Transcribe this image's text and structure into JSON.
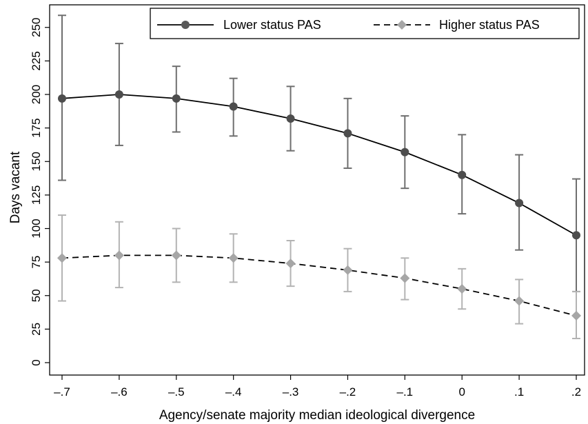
{
  "chart_data": {
    "type": "line",
    "title": "",
    "xlabel": "Agency/senate majority median ideological divergence",
    "ylabel": "Days vacant",
    "x": [
      -0.7,
      -0.6,
      -0.5,
      -0.4,
      -0.3,
      -0.2,
      -0.1,
      0,
      0.1,
      0.2
    ],
    "x_tick_labels": [
      "–.7",
      "–.6",
      "–.5",
      "–.4",
      "–.3",
      "–.2",
      "–.1",
      "0",
      ".1",
      ".2"
    ],
    "y_ticks": [
      0,
      25,
      50,
      75,
      100,
      125,
      150,
      175,
      200,
      225,
      250
    ],
    "xlim": [
      -0.7,
      0.2
    ],
    "ylim": [
      0,
      260
    ],
    "grid": false,
    "legend_position": "top-right",
    "series": [
      {
        "name": "Lower status PAS",
        "line_style": "solid",
        "marker": "circle",
        "color": "#4d4d4d",
        "errorbar_color": "#6e6e6e",
        "values": [
          197,
          200,
          197,
          191,
          182,
          171,
          157,
          140,
          119,
          95
        ],
        "ci_low": [
          136,
          162,
          172,
          169,
          158,
          145,
          130,
          111,
          84,
          53
        ],
        "ci_high": [
          259,
          238,
          221,
          212,
          206,
          197,
          184,
          170,
          155,
          137
        ]
      },
      {
        "name": "Higher status PAS",
        "line_style": "dashed",
        "marker": "diamond",
        "color": "#a6a6a6",
        "errorbar_color": "#b3b3b3",
        "values": [
          78,
          80,
          80,
          78,
          74,
          69,
          63,
          55,
          46,
          35
        ],
        "ci_low": [
          46,
          56,
          60,
          60,
          57,
          53,
          47,
          40,
          29,
          18
        ],
        "ci_high": [
          110,
          105,
          100,
          96,
          91,
          85,
          78,
          70,
          62,
          53
        ]
      }
    ]
  }
}
